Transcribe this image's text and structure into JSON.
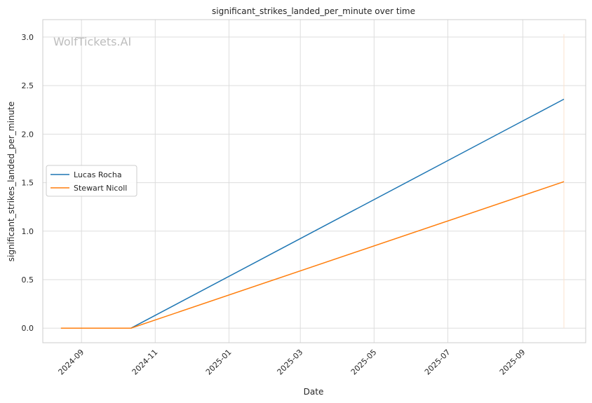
{
  "watermark": "WolfTickets.AI",
  "chart_data": {
    "type": "line",
    "title": "significant_strikes_landed_per_minute over time",
    "xlabel": "Date",
    "ylabel": "significant_strikes_landed_per_minute",
    "x_ticks": [
      "2024-09",
      "2024-11",
      "2025-01",
      "2025-03",
      "2025-05",
      "2025-07",
      "2025-09"
    ],
    "x_tick_dates": [
      "2024-09-01",
      "2024-11-01",
      "2025-01-01",
      "2025-03-01",
      "2025-05-01",
      "2025-07-01",
      "2025-09-01"
    ],
    "xlim": [
      "2024-07-31",
      "2025-10-23"
    ],
    "y_ticks": [
      "0.0",
      "0.5",
      "1.0",
      "1.5",
      "2.0",
      "2.5",
      "3.0"
    ],
    "ylim": [
      -0.15,
      3.18
    ],
    "grid": true,
    "legend_position": "center-left",
    "series": [
      {
        "name": "Lucas Rocha",
        "color": "#1f77b4",
        "points": [
          [
            "2024-08-15",
            0.0
          ],
          [
            "2024-10-12",
            0.0
          ],
          [
            "2025-10-05",
            2.36
          ]
        ]
      },
      {
        "name": "Stewart Nicoll",
        "color": "#ff7f0e",
        "points": [
          [
            "2024-08-15",
            0.0
          ],
          [
            "2024-10-12",
            0.0
          ],
          [
            "2025-10-05",
            1.51
          ]
        ]
      }
    ],
    "marker_line": {
      "date": "2025-10-05",
      "color": "#fbe3cf"
    }
  }
}
